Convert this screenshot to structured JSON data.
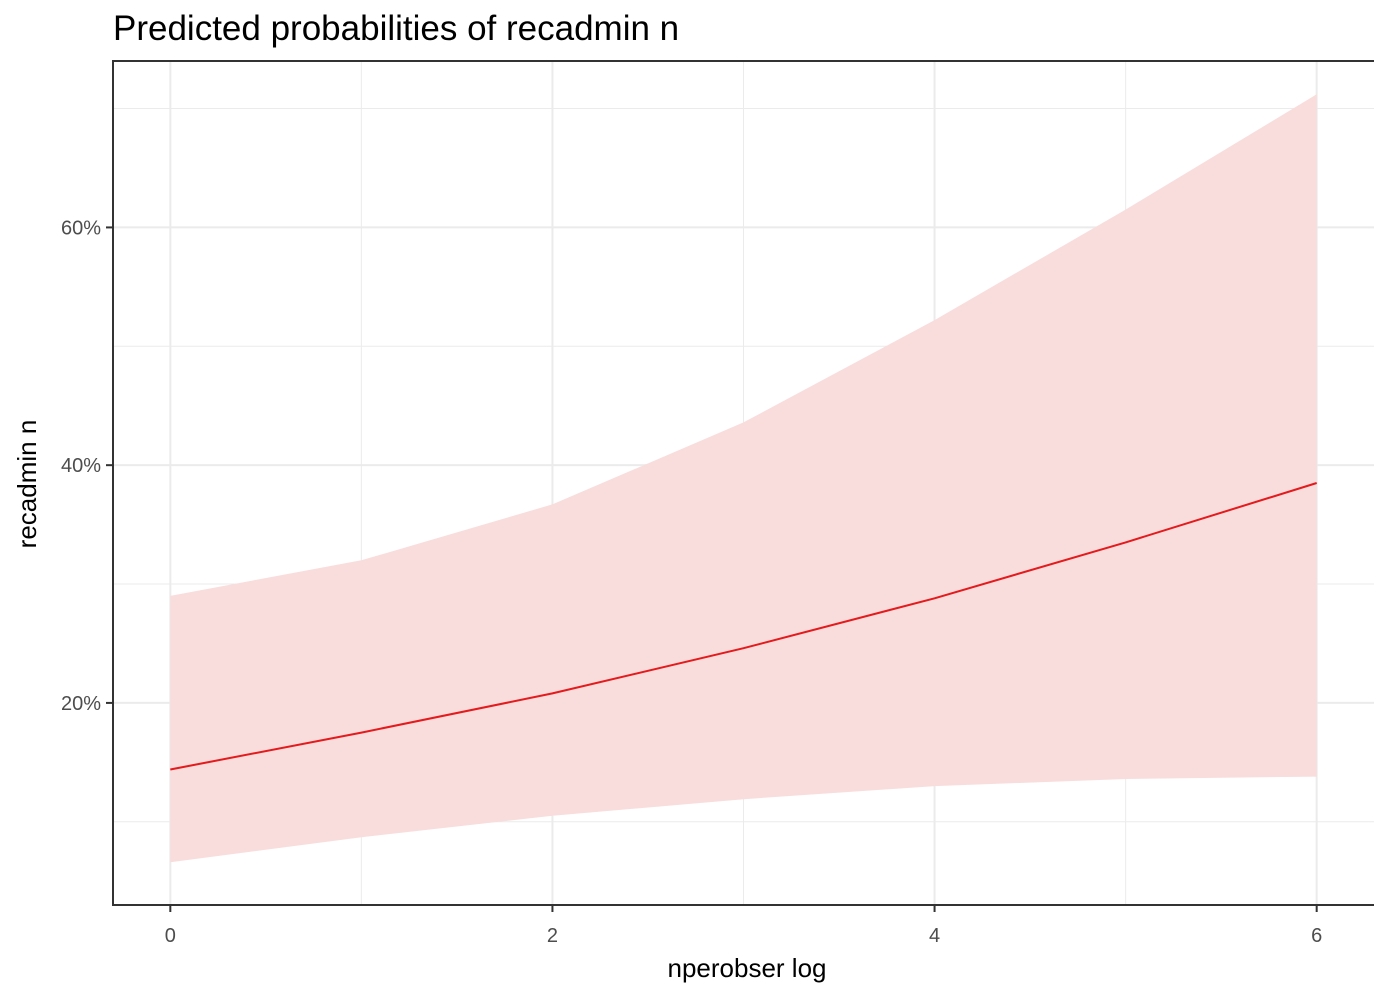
{
  "chart_data": {
    "type": "line",
    "title": "Predicted probabilities of recadmin n",
    "xlabel": "nperobser log",
    "ylabel": "recadmin n",
    "xlim": [
      -0.3,
      6.3
    ],
    "ylim": [
      0.03,
      0.74
    ],
    "x_ticks": [
      0,
      2,
      4,
      6
    ],
    "x_tick_labels": [
      "0",
      "2",
      "4",
      "6"
    ],
    "y_ticks": [
      0.2,
      0.4,
      0.6
    ],
    "y_tick_labels": [
      "20%",
      "40%",
      "60%"
    ],
    "grid": true,
    "legend": "none",
    "colors": {
      "line": "#e41a1c",
      "ribbon": "#f9dcdc",
      "grid": "#ebebeb",
      "panel_border": "#333333"
    },
    "series": [
      {
        "x": [
          0,
          1,
          2,
          3,
          4,
          5,
          6
        ],
        "values": [
          0.144,
          0.175,
          0.208,
          0.246,
          0.288,
          0.335,
          0.385
        ],
        "ci_low": [
          0.066,
          0.087,
          0.105,
          0.119,
          0.13,
          0.136,
          0.138
        ],
        "ci_high": [
          0.29,
          0.32,
          0.367,
          0.436,
          0.522,
          0.615,
          0.712
        ]
      }
    ]
  }
}
